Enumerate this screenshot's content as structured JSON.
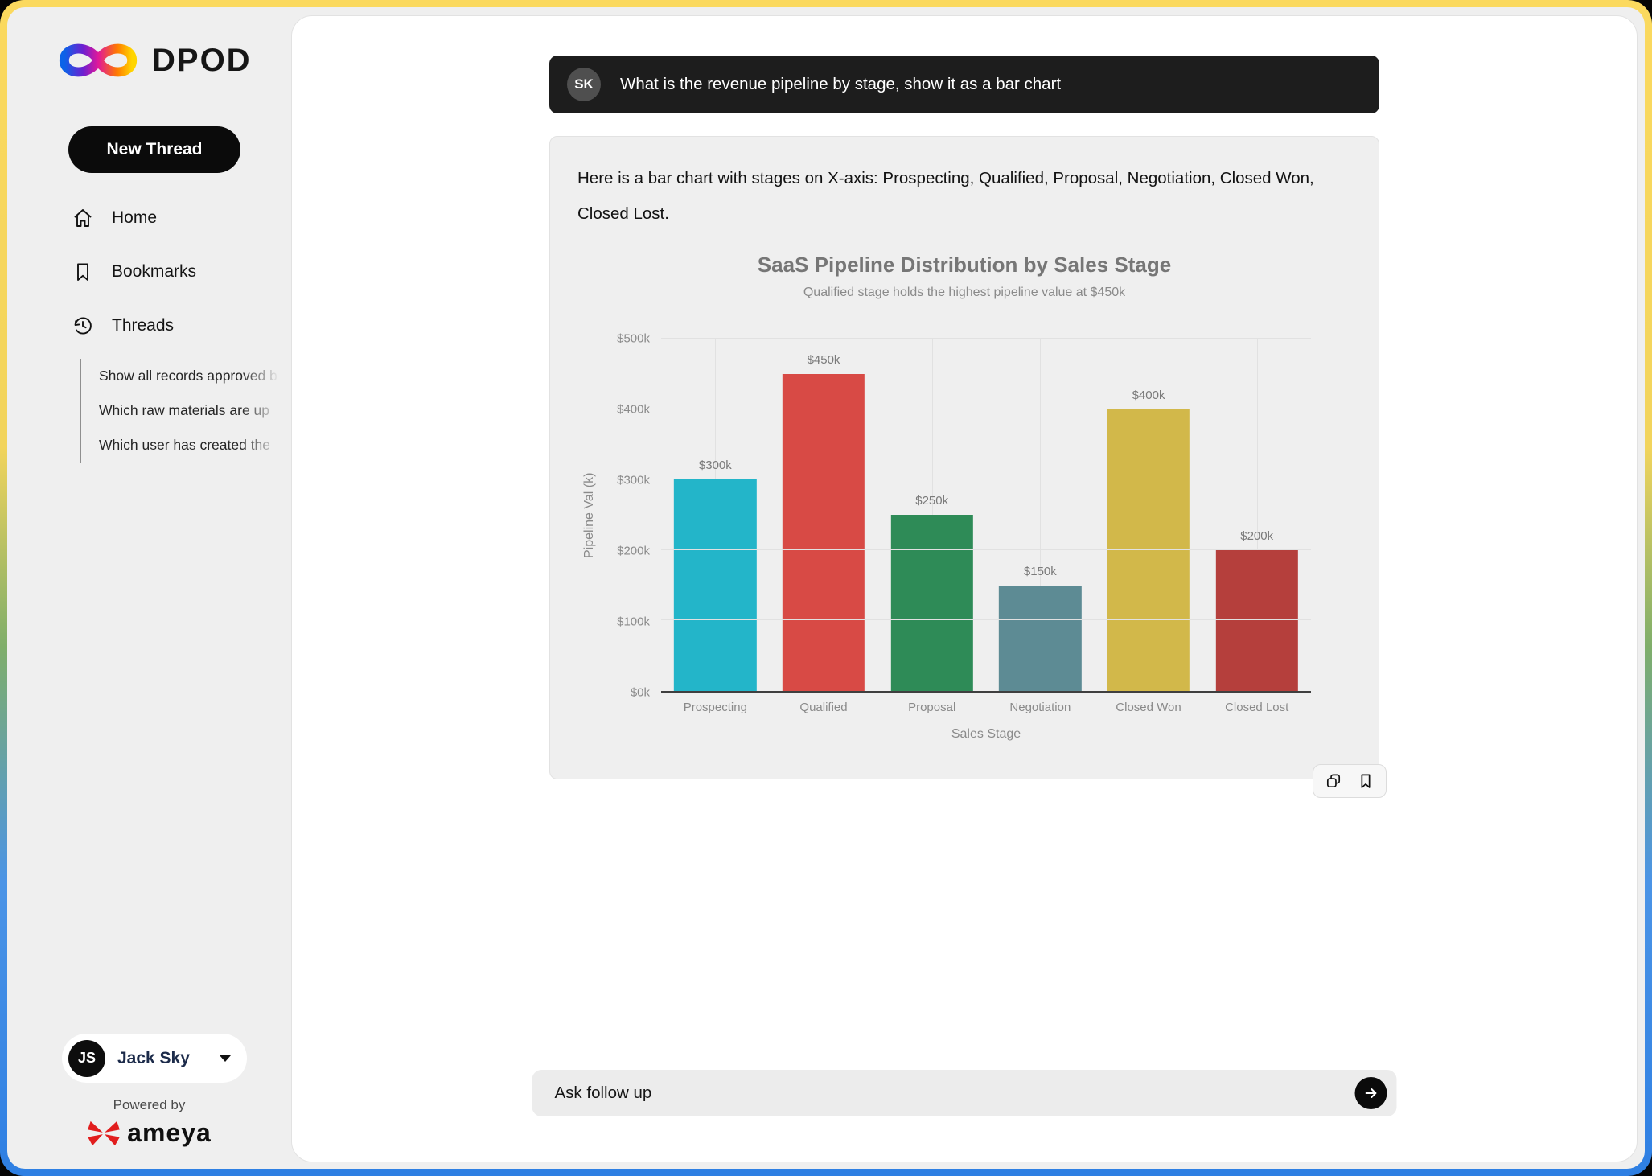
{
  "app": {
    "name": "DPOD"
  },
  "colors": {
    "frame_top": "#fbd95e",
    "frame_bottom": "#2e7fe3",
    "app_bg": "#efefef",
    "panel_bg": "#ffffff",
    "user_message_bg": "#1d1d1d",
    "new_thread_bg": "#0b0b0b",
    "brand_red": "#e11d1d"
  },
  "sidebar": {
    "logo": "DPOD",
    "new_thread_label": "New Thread",
    "nav": [
      {
        "label": "Home",
        "icon": "home-icon"
      },
      {
        "label": "Bookmarks",
        "icon": "bookmark-icon"
      },
      {
        "label": "Threads",
        "icon": "history-icon"
      }
    ],
    "threads": [
      {
        "label": "Show all records approved b"
      },
      {
        "label": "Which raw materials are up"
      },
      {
        "label": "Which user has created the"
      }
    ],
    "profile": {
      "initials": "JS",
      "name": "Jack Sky"
    },
    "powered_by": "Powered by",
    "brand": "ameya"
  },
  "chat": {
    "user_message": {
      "avatar_initials": "SK",
      "text": "What is the revenue pipeline by stage, show it as a bar chart"
    },
    "response_text": "Here is a bar chart with stages on X-axis: Prospecting, Qualified, Proposal, Negotiation, Closed Won, Closed Lost."
  },
  "chart_data": {
    "type": "bar",
    "title": "SaaS Pipeline Distribution by Sales Stage",
    "subtitle": "Qualified stage holds the highest pipeline value at $450k",
    "xlabel": "Sales Stage",
    "ylabel": "Pipeline Val (k)",
    "categories": [
      "Prospecting",
      "Qualified",
      "Proposal",
      "Negotiation",
      "Closed Won",
      "Closed Lost"
    ],
    "values": [
      300,
      450,
      250,
      150,
      400,
      200
    ],
    "bar_labels": [
      "$300k",
      "$450k",
      "$250k",
      "$150k",
      "$400k",
      "$200k"
    ],
    "bar_colors": [
      "#23b5c9",
      "#d84a45",
      "#2e8b57",
      "#5d8b94",
      "#d2b84a",
      "#b53f3c"
    ],
    "ylim": [
      0,
      500
    ],
    "ytick_step": 100,
    "yticks": [
      "$0k",
      "$100k",
      "$200k",
      "$300k",
      "$400k",
      "$500k"
    ],
    "grid": true,
    "legend": false
  },
  "actions": {
    "copy": "copy-icon",
    "bookmark": "bookmark-icon"
  },
  "followup": {
    "placeholder": "Ask follow up"
  }
}
